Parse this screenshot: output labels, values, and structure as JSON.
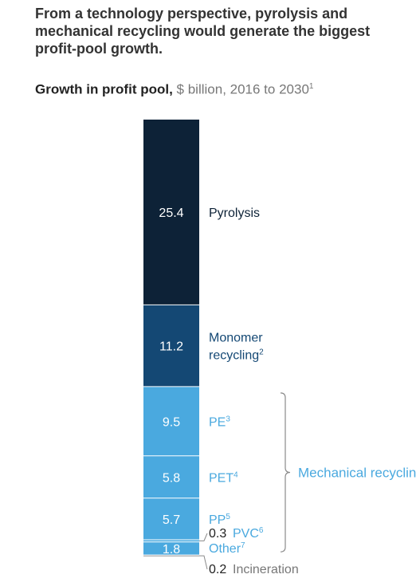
{
  "headline": "From a technology perspective, pyrolysis and mechanical recycling would generate the biggest profit-pool growth.",
  "subtitle": {
    "bold": "Growth in profit pool,",
    "light": "$ billion, 2016 to 2030",
    "footnote": "1"
  },
  "chart_data": {
    "type": "bar",
    "stacked": true,
    "title": "Growth in profit pool, $ billion, 2016 to 2030",
    "series": [
      {
        "name": "Pyrolysis",
        "value": 25.4,
        "label": "25.4",
        "color": "#0d2237",
        "text_color": "#0d2237",
        "footnote": ""
      },
      {
        "name": "Monomer recycling",
        "lines": [
          "Monomer",
          "recycling"
        ],
        "value": 11.2,
        "label": "11.2",
        "color": "#144874",
        "text_color": "#144874",
        "footnote": "2"
      },
      {
        "name": "PE",
        "value": 9.5,
        "label": "9.5",
        "color": "#4aa9df",
        "text_color": "#4aa9df",
        "footnote": "3"
      },
      {
        "name": "PET",
        "value": 5.8,
        "label": "5.8",
        "color": "#4aa9df",
        "text_color": "#4aa9df",
        "footnote": "4"
      },
      {
        "name": "PP",
        "value": 5.7,
        "label": "5.7",
        "color": "#4aa9df",
        "text_color": "#4aa9df",
        "footnote": "5"
      },
      {
        "name": "PVC",
        "value": 0.3,
        "label": "0.3",
        "color": "#4aa9df",
        "text_color": "#4aa9df",
        "footnote": "6"
      },
      {
        "name": "Other",
        "value": 1.8,
        "label": "1.8",
        "color": "#4aa9df",
        "text_color": "#4aa9df",
        "footnote": "7"
      },
      {
        "name": "Incineration",
        "value": 0.2,
        "label": "0.2",
        "color": "#b0b0b0",
        "text_color": "#777777",
        "footnote": ""
      }
    ],
    "group_label": {
      "text": "Mechanical recycling",
      "color": "#4aa9df",
      "members": [
        "PE",
        "PET",
        "PP",
        "PVC",
        "Other"
      ]
    },
    "colors": {
      "inside_label": "#ffffff",
      "outside_value": "#222222"
    }
  }
}
